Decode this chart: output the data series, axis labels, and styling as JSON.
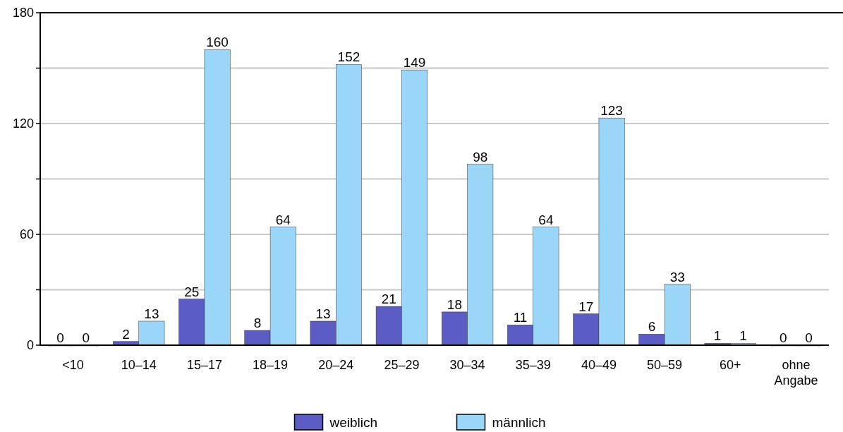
{
  "chart_data": {
    "type": "bar",
    "categories": [
      "<10",
      "10–14",
      "15–17",
      "18–19",
      "20–24",
      "25–29",
      "30–34",
      "35–39",
      "40–49",
      "50–59",
      "60+",
      "ohne Angabe"
    ],
    "series": [
      {
        "name": "weiblich",
        "color": "#5b5cc4",
        "values": [
          0,
          2,
          25,
          8,
          13,
          21,
          18,
          11,
          17,
          6,
          1,
          0
        ]
      },
      {
        "name": "männlich",
        "color": "#99d6f8",
        "values": [
          0,
          13,
          160,
          64,
          152,
          149,
          98,
          64,
          123,
          33,
          1,
          0
        ]
      }
    ],
    "ylim": [
      0,
      180
    ],
    "yticks": [
      0,
      {
        "value": 30,
        "label": null
      },
      60,
      {
        "value": 90,
        "label": null
      },
      120,
      {
        "value": 150,
        "label": null
      },
      180
    ],
    "grid": "y",
    "data_labels": true,
    "legend": "bottom"
  }
}
